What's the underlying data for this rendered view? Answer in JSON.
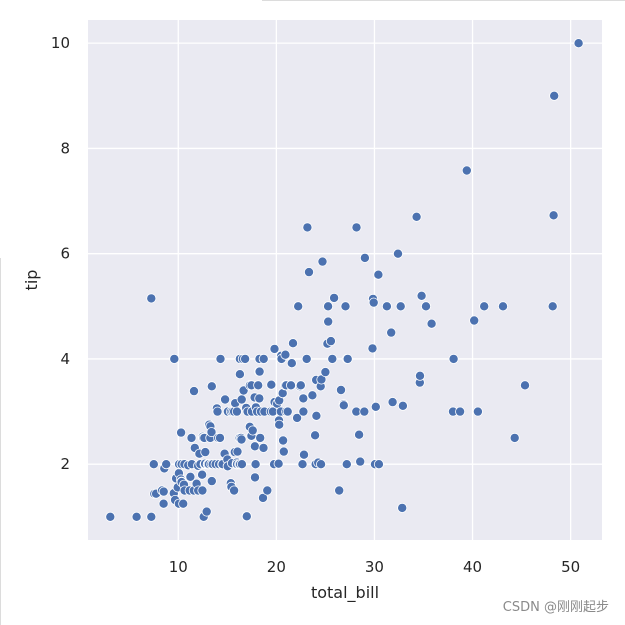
{
  "chart_data": {
    "type": "scatter",
    "title": "",
    "xlabel": "total_bill",
    "ylabel": "tip",
    "xlim": [
      0.8,
      53.2
    ],
    "ylim": [
      0.56,
      10.44
    ],
    "xticks": [
      10,
      20,
      30,
      40,
      50
    ],
    "yticks": [
      2,
      4,
      6,
      8,
      10
    ],
    "grid": true,
    "background": "#eaeaf2",
    "grid_color": "#ffffff",
    "marker_color": "#4c72b0",
    "marker_edge": "#ffffff",
    "points": [
      [
        3.07,
        1.0
      ],
      [
        5.75,
        1.0
      ],
      [
        7.25,
        1.0
      ],
      [
        7.25,
        5.15
      ],
      [
        7.51,
        2.0
      ],
      [
        7.56,
        1.44
      ],
      [
        7.74,
        1.44
      ],
      [
        8.35,
        1.5
      ],
      [
        8.51,
        1.25
      ],
      [
        8.52,
        1.48
      ],
      [
        8.58,
        1.92
      ],
      [
        8.77,
        2.0
      ],
      [
        9.55,
        1.45
      ],
      [
        9.6,
        4.0
      ],
      [
        9.68,
        1.32
      ],
      [
        9.78,
        1.73
      ],
      [
        9.94,
        1.56
      ],
      [
        10.07,
        1.25
      ],
      [
        10.07,
        1.83
      ],
      [
        10.09,
        2.0
      ],
      [
        10.27,
        1.71
      ],
      [
        10.29,
        2.6
      ],
      [
        10.33,
        1.67
      ],
      [
        10.33,
        2.0
      ],
      [
        10.34,
        1.66
      ],
      [
        10.34,
        2.0
      ],
      [
        10.51,
        1.25
      ],
      [
        10.59,
        1.61
      ],
      [
        10.63,
        2.0
      ],
      [
        10.65,
        1.5
      ],
      [
        11.02,
        1.98
      ],
      [
        11.17,
        1.5
      ],
      [
        11.24,
        1.76
      ],
      [
        11.35,
        2.5
      ],
      [
        11.38,
        2.0
      ],
      [
        11.59,
        1.5
      ],
      [
        11.61,
        3.39
      ],
      [
        11.69,
        2.31
      ],
      [
        11.87,
        1.63
      ],
      [
        12.02,
        1.97
      ],
      [
        12.03,
        1.5
      ],
      [
        12.16,
        2.2
      ],
      [
        12.26,
        2.0
      ],
      [
        12.43,
        1.8
      ],
      [
        12.46,
        1.5
      ],
      [
        12.48,
        2.52
      ],
      [
        12.54,
        2.5
      ],
      [
        12.6,
        1.0
      ],
      [
        12.66,
        2.5
      ],
      [
        12.69,
        2.0
      ],
      [
        12.74,
        2.01
      ],
      [
        12.76,
        2.23
      ],
      [
        12.9,
        1.1
      ],
      [
        13.0,
        2.0
      ],
      [
        13.03,
        2.0
      ],
      [
        13.13,
        2.0
      ],
      [
        13.16,
        2.75
      ],
      [
        13.27,
        2.5
      ],
      [
        13.28,
        2.72
      ],
      [
        13.37,
        2.0
      ],
      [
        13.39,
        2.61
      ],
      [
        13.42,
        1.68
      ],
      [
        13.42,
        3.48
      ],
      [
        13.51,
        2.0
      ],
      [
        13.81,
        2.0
      ],
      [
        13.94,
        3.06
      ],
      [
        14.0,
        3.0
      ],
      [
        14.07,
        2.5
      ],
      [
        14.15,
        2.0
      ],
      [
        14.26,
        2.5
      ],
      [
        14.31,
        4.0
      ],
      [
        14.48,
        2.0
      ],
      [
        14.52,
        2.0
      ],
      [
        14.73,
        2.2
      ],
      [
        14.78,
        3.23
      ],
      [
        15.01,
        2.09
      ],
      [
        15.04,
        1.96
      ],
      [
        15.06,
        3.0
      ],
      [
        15.36,
        1.64
      ],
      [
        15.38,
        3.0
      ],
      [
        15.42,
        1.57
      ],
      [
        15.48,
        2.02
      ],
      [
        15.53,
        3.0
      ],
      [
        15.69,
        1.5
      ],
      [
        15.69,
        3.0
      ],
      [
        15.77,
        2.23
      ],
      [
        15.81,
        3.16
      ],
      [
        15.95,
        2.0
      ],
      [
        15.98,
        2.03
      ],
      [
        15.98,
        3.0
      ],
      [
        16.0,
        2.0
      ],
      [
        16.04,
        2.24
      ],
      [
        16.21,
        2.0
      ],
      [
        16.27,
        2.5
      ],
      [
        16.29,
        3.71
      ],
      [
        16.29,
        4.0
      ],
      [
        16.31,
        2.0
      ],
      [
        16.4,
        2.5
      ],
      [
        16.45,
        2.47
      ],
      [
        16.47,
        3.23
      ],
      [
        16.49,
        2.0
      ],
      [
        16.58,
        4.0
      ],
      [
        16.66,
        3.4
      ],
      [
        16.82,
        4.0
      ],
      [
        16.93,
        3.07
      ],
      [
        16.97,
        1.01
      ],
      [
        16.99,
        1.01
      ],
      [
        17.07,
        3.0
      ],
      [
        17.29,
        2.71
      ],
      [
        17.31,
        3.5
      ],
      [
        17.46,
        2.54
      ],
      [
        17.47,
        3.5
      ],
      [
        17.51,
        3.0
      ],
      [
        17.59,
        2.64
      ],
      [
        17.78,
        3.27
      ],
      [
        17.81,
        2.34
      ],
      [
        17.82,
        1.75
      ],
      [
        17.89,
        2.0
      ],
      [
        17.92,
        3.08
      ],
      [
        18.04,
        3.0
      ],
      [
        18.15,
        3.5
      ],
      [
        18.24,
        3.76
      ],
      [
        18.26,
        3.25
      ],
      [
        18.28,
        4.0
      ],
      [
        18.29,
        3.76
      ],
      [
        18.35,
        2.5
      ],
      [
        18.43,
        3.0
      ],
      [
        18.64,
        1.36
      ],
      [
        18.69,
        2.31
      ],
      [
        18.71,
        4.0
      ],
      [
        18.78,
        3.0
      ],
      [
        19.08,
        1.5
      ],
      [
        19.44,
        3.0
      ],
      [
        19.49,
        3.51
      ],
      [
        19.65,
        3.0
      ],
      [
        19.77,
        2.0
      ],
      [
        19.81,
        4.19
      ],
      [
        19.82,
        3.18
      ],
      [
        20.08,
        3.15
      ],
      [
        20.23,
        2.01
      ],
      [
        20.27,
        2.83
      ],
      [
        20.29,
        2.75
      ],
      [
        20.29,
        3.21
      ],
      [
        20.45,
        3.0
      ],
      [
        20.49,
        4.06
      ],
      [
        20.53,
        4.0
      ],
      [
        20.65,
        3.35
      ],
      [
        20.69,
        2.45
      ],
      [
        20.76,
        2.24
      ],
      [
        20.9,
        3.5
      ],
      [
        20.92,
        4.08
      ],
      [
        21.01,
        3.5
      ],
      [
        21.01,
        3.0
      ],
      [
        21.16,
        3.0
      ],
      [
        21.5,
        3.5
      ],
      [
        21.58,
        3.92
      ],
      [
        21.7,
        4.3
      ],
      [
        22.12,
        2.88
      ],
      [
        22.23,
        5.0
      ],
      [
        22.42,
        3.48
      ],
      [
        22.49,
        3.5
      ],
      [
        22.67,
        2.0
      ],
      [
        22.75,
        3.25
      ],
      [
        22.76,
        3.0
      ],
      [
        22.82,
        2.18
      ],
      [
        23.1,
        4.0
      ],
      [
        23.17,
        6.5
      ],
      [
        23.33,
        5.65
      ],
      [
        23.68,
        3.31
      ],
      [
        23.95,
        2.55
      ],
      [
        24.01,
        2.0
      ],
      [
        24.06,
        3.6
      ],
      [
        24.08,
        2.92
      ],
      [
        24.27,
        2.03
      ],
      [
        24.52,
        3.48
      ],
      [
        24.55,
        2.0
      ],
      [
        24.59,
        3.61
      ],
      [
        24.71,
        5.85
      ],
      [
        25.0,
        3.75
      ],
      [
        25.21,
        4.29
      ],
      [
        25.28,
        5.0
      ],
      [
        25.29,
        4.71
      ],
      [
        25.56,
        4.34
      ],
      [
        25.71,
        4.0
      ],
      [
        25.89,
        5.16
      ],
      [
        26.41,
        1.5
      ],
      [
        26.59,
        3.41
      ],
      [
        26.86,
        3.14
      ],
      [
        26.88,
        3.12
      ],
      [
        27.05,
        5.0
      ],
      [
        27.18,
        2.0
      ],
      [
        27.2,
        4.0
      ],
      [
        27.28,
        4.0
      ],
      [
        28.15,
        3.0
      ],
      [
        28.17,
        6.5
      ],
      [
        28.44,
        2.56
      ],
      [
        28.55,
        2.05
      ],
      [
        28.97,
        3.0
      ],
      [
        29.03,
        5.92
      ],
      [
        29.8,
        4.2
      ],
      [
        29.85,
        5.14
      ],
      [
        29.93,
        5.07
      ],
      [
        30.06,
        2.0
      ],
      [
        30.14,
        3.09
      ],
      [
        30.4,
        5.6
      ],
      [
        30.46,
        2.0
      ],
      [
        31.27,
        5.0
      ],
      [
        31.71,
        4.5
      ],
      [
        31.85,
        3.18
      ],
      [
        32.4,
        6.0
      ],
      [
        32.68,
        5.0
      ],
      [
        32.83,
        1.17
      ],
      [
        32.9,
        3.11
      ],
      [
        34.3,
        6.7
      ],
      [
        34.63,
        3.55
      ],
      [
        34.65,
        3.68
      ],
      [
        34.81,
        5.2
      ],
      [
        35.26,
        5.0
      ],
      [
        35.83,
        4.67
      ],
      [
        38.01,
        3.0
      ],
      [
        38.07,
        4.0
      ],
      [
        38.73,
        3.0
      ],
      [
        39.42,
        7.58
      ],
      [
        40.17,
        4.73
      ],
      [
        40.55,
        3.0
      ],
      [
        41.19,
        5.0
      ],
      [
        43.11,
        5.0
      ],
      [
        44.3,
        2.5
      ],
      [
        45.35,
        3.5
      ],
      [
        48.17,
        5.0
      ],
      [
        48.27,
        6.73
      ],
      [
        48.33,
        9.0
      ],
      [
        50.81,
        10.0
      ]
    ]
  },
  "watermark": "CSDN @刚刚起步"
}
